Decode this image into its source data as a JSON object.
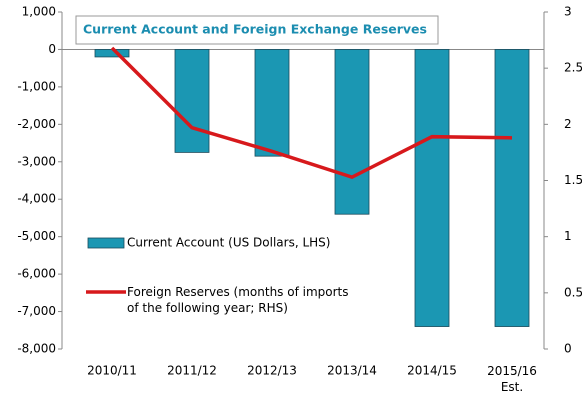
{
  "chart_data": {
    "type": "bar-line",
    "title": "Current Account and Foreign Exchange Reserves",
    "categories": [
      "2010/11",
      "2011/12",
      "2012/13",
      "2013/14",
      "2014/15",
      "2015/16 Est."
    ],
    "series": [
      {
        "name": "Current Account (US Dollars, LHS)",
        "type": "bar",
        "color": "#1b97b3",
        "values": [
          -200,
          -2750,
          -2850,
          -4400,
          -7400,
          -7400
        ]
      },
      {
        "name": "Foreign Reserves (months of imports of the following year; RHS)",
        "type": "line",
        "axis": "y2",
        "color": "#d7191c",
        "values": [
          2.68,
          1.97,
          1.76,
          1.53,
          1.89,
          1.88
        ]
      }
    ],
    "ylim": [
      -8000,
      1000
    ],
    "yticks": [
      {
        "value": -8000,
        "label": "-8,000"
      },
      {
        "value": -7000,
        "label": "-7,000"
      },
      {
        "value": -6000,
        "label": "-6,000"
      },
      {
        "value": -5000,
        "label": "-5,000"
      },
      {
        "value": -4000,
        "label": "-4,000"
      },
      {
        "value": -3000,
        "label": "-3,000"
      },
      {
        "value": -2000,
        "label": "-2,000"
      },
      {
        "value": -1000,
        "label": "-1,000"
      },
      0,
      {
        "value": 1000,
        "label": "1,000"
      }
    ],
    "y2lim": [
      0,
      3
    ],
    "y2ticks": [
      0,
      0.5,
      1,
      1.5,
      2,
      2.5,
      3
    ]
  }
}
